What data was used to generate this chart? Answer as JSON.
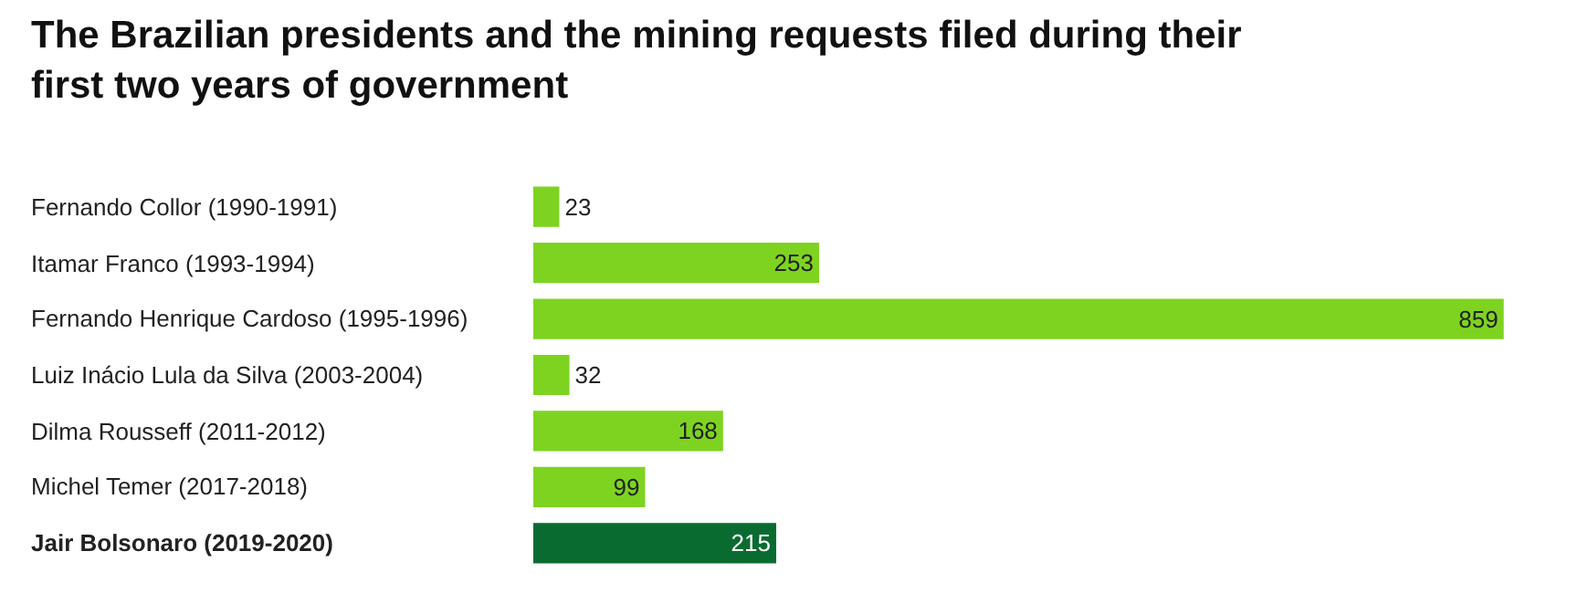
{
  "chart_data": {
    "type": "bar",
    "orientation": "horizontal",
    "title": "The Brazilian presidents and the mining requests filed during their first two years of government",
    "categories": [
      "Fernando Collor (1990-1991)",
      "Itamar Franco (1993-1994)",
      "Fernando Henrique Cardoso (1995-1996)",
      "Luiz Inácio Lula da Silva (2003-2004)",
      "Dilma Rousseff (2011-2012)",
      "Michel Temer (2017-2018)",
      "Jair Bolsonaro (2019-2020)"
    ],
    "values": [
      23,
      253,
      859,
      32,
      168,
      99,
      215
    ],
    "colors": [
      "#7ed321",
      "#7ed321",
      "#7ed321",
      "#7ed321",
      "#7ed321",
      "#7ed321",
      "#0a6b31"
    ],
    "data_labels": true,
    "legend": false
  }
}
